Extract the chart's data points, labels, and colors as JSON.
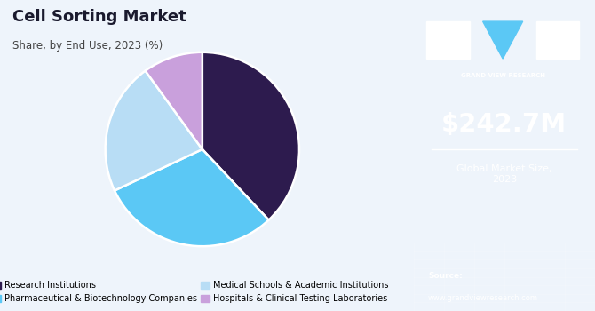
{
  "title": "Cell Sorting Market",
  "subtitle": "Share, by End Use, 2023 (%)",
  "slices": [
    {
      "label": "Research Institutions",
      "value": 38,
      "color": "#2d1b4e"
    },
    {
      "label": "Pharmaceutical & Biotechnology Companies",
      "value": 30,
      "color": "#5bc8f5"
    },
    {
      "label": "Medical Schools & Academic Institutions",
      "value": 22,
      "color": "#b8ddf5"
    },
    {
      "label": "Hospitals & Clinical Testing Laboratories",
      "value": 10,
      "color": "#c9a0dc"
    }
  ],
  "start_angle": 90,
  "right_panel_bg": "#3b1f6b",
  "right_panel_bottom_bg": "#6a7fc1",
  "market_size": "$242.7M",
  "market_size_label": "Global Market Size,\n2023",
  "source_label": "Source:",
  "source_url": "www.grandviewresearch.com",
  "left_bg": "#eef4fb",
  "title_color": "#1a1a2e",
  "subtitle_color": "#444444",
  "gvr_text": "GRAND VIEW RESEARCH",
  "logo_sq_color": "#ffffff",
  "logo_tri_color": "#5bc8f5"
}
